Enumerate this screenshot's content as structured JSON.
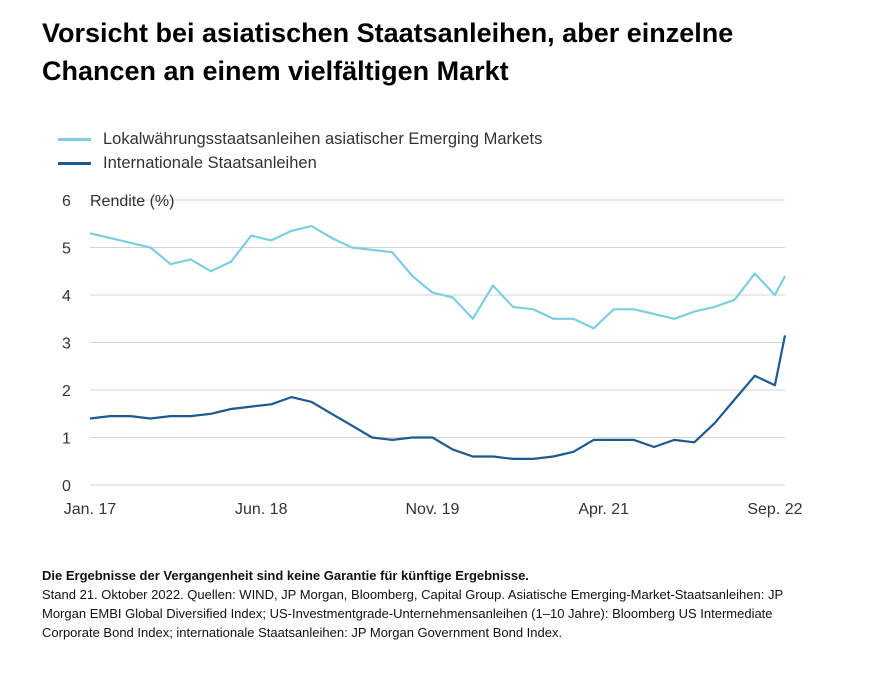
{
  "title": "Vorsicht bei asiatischen Staatsanleihen, aber einzelne Chancen an einem vielfältigen Markt",
  "footer": {
    "disclaimer": "Die Ergebnisse der Vergangenheit sind keine Garantie für künftige Ergebnisse.",
    "note": "Stand 21. Oktober 2022. Quellen: WIND, JP Morgan, Bloomberg, Capital Group. Asiatische Emerging-Market-Staatsanleihen: JP Morgan EMBI Global Diversified Index; US-Investmentgrade-Unternehmensanleihen (1–10 Jahre): Bloomberg US Intermediate Corporate Bond Index; internationale Staatsanleihen: JP Morgan Government Bond Index."
  },
  "colors": {
    "light": "#7ccfe0",
    "dark": "#1d5a92",
    "grid": "#d4d4d4",
    "text": "#333333"
  },
  "chart_data": {
    "type": "line",
    "title": "",
    "xlabel": "",
    "ylabel": "Rendite (%)",
    "ylim": [
      0,
      6
    ],
    "yticks": [
      0,
      1,
      2,
      3,
      4,
      5,
      6
    ],
    "xlim": [
      "2017-01",
      "2022-10"
    ],
    "xticks": [
      {
        "label": "Jan. 17",
        "x": "2017-01"
      },
      {
        "label": "Jun. 18",
        "x": "2018-06"
      },
      {
        "label": "Nov. 19",
        "x": "2019-11"
      },
      {
        "label": "Apr. 21",
        "x": "2021-04"
      },
      {
        "label": "Sep. 22",
        "x": "2022-09"
      }
    ],
    "grid": true,
    "legend_position": "top-left",
    "x": [
      "2017-01",
      "2017-03",
      "2017-05",
      "2017-07",
      "2017-09",
      "2017-11",
      "2018-01",
      "2018-03",
      "2018-05",
      "2018-07",
      "2018-09",
      "2018-11",
      "2019-01",
      "2019-03",
      "2019-05",
      "2019-07",
      "2019-09",
      "2019-11",
      "2020-01",
      "2020-03",
      "2020-05",
      "2020-07",
      "2020-09",
      "2020-11",
      "2021-01",
      "2021-03",
      "2021-05",
      "2021-07",
      "2021-09",
      "2021-11",
      "2022-01",
      "2022-03",
      "2022-05",
      "2022-07",
      "2022-09",
      "2022-10"
    ],
    "series": [
      {
        "name": "Lokalwährungsstaatsanleihen asiatischer Emerging Markets",
        "values": [
          5.3,
          5.2,
          5.1,
          5.0,
          4.65,
          4.75,
          4.5,
          4.7,
          5.25,
          5.15,
          5.35,
          5.45,
          5.2,
          5.0,
          4.95,
          4.9,
          4.4,
          4.05,
          3.95,
          3.5,
          4.2,
          3.75,
          3.7,
          3.5,
          3.5,
          3.3,
          3.7,
          3.7,
          3.6,
          3.5,
          3.65,
          3.75,
          3.9,
          4.45,
          4.0,
          4.4
        ]
      },
      {
        "name": "Internationale Staatsanleihen",
        "values": [
          1.4,
          1.45,
          1.45,
          1.4,
          1.45,
          1.45,
          1.5,
          1.6,
          1.65,
          1.7,
          1.85,
          1.75,
          1.5,
          1.25,
          1.0,
          0.95,
          1.0,
          1.0,
          0.75,
          0.6,
          0.6,
          0.55,
          0.55,
          0.6,
          0.7,
          0.95,
          0.95,
          0.95,
          0.8,
          0.95,
          0.9,
          1.3,
          1.8,
          2.3,
          2.1,
          3.15
        ]
      }
    ]
  }
}
